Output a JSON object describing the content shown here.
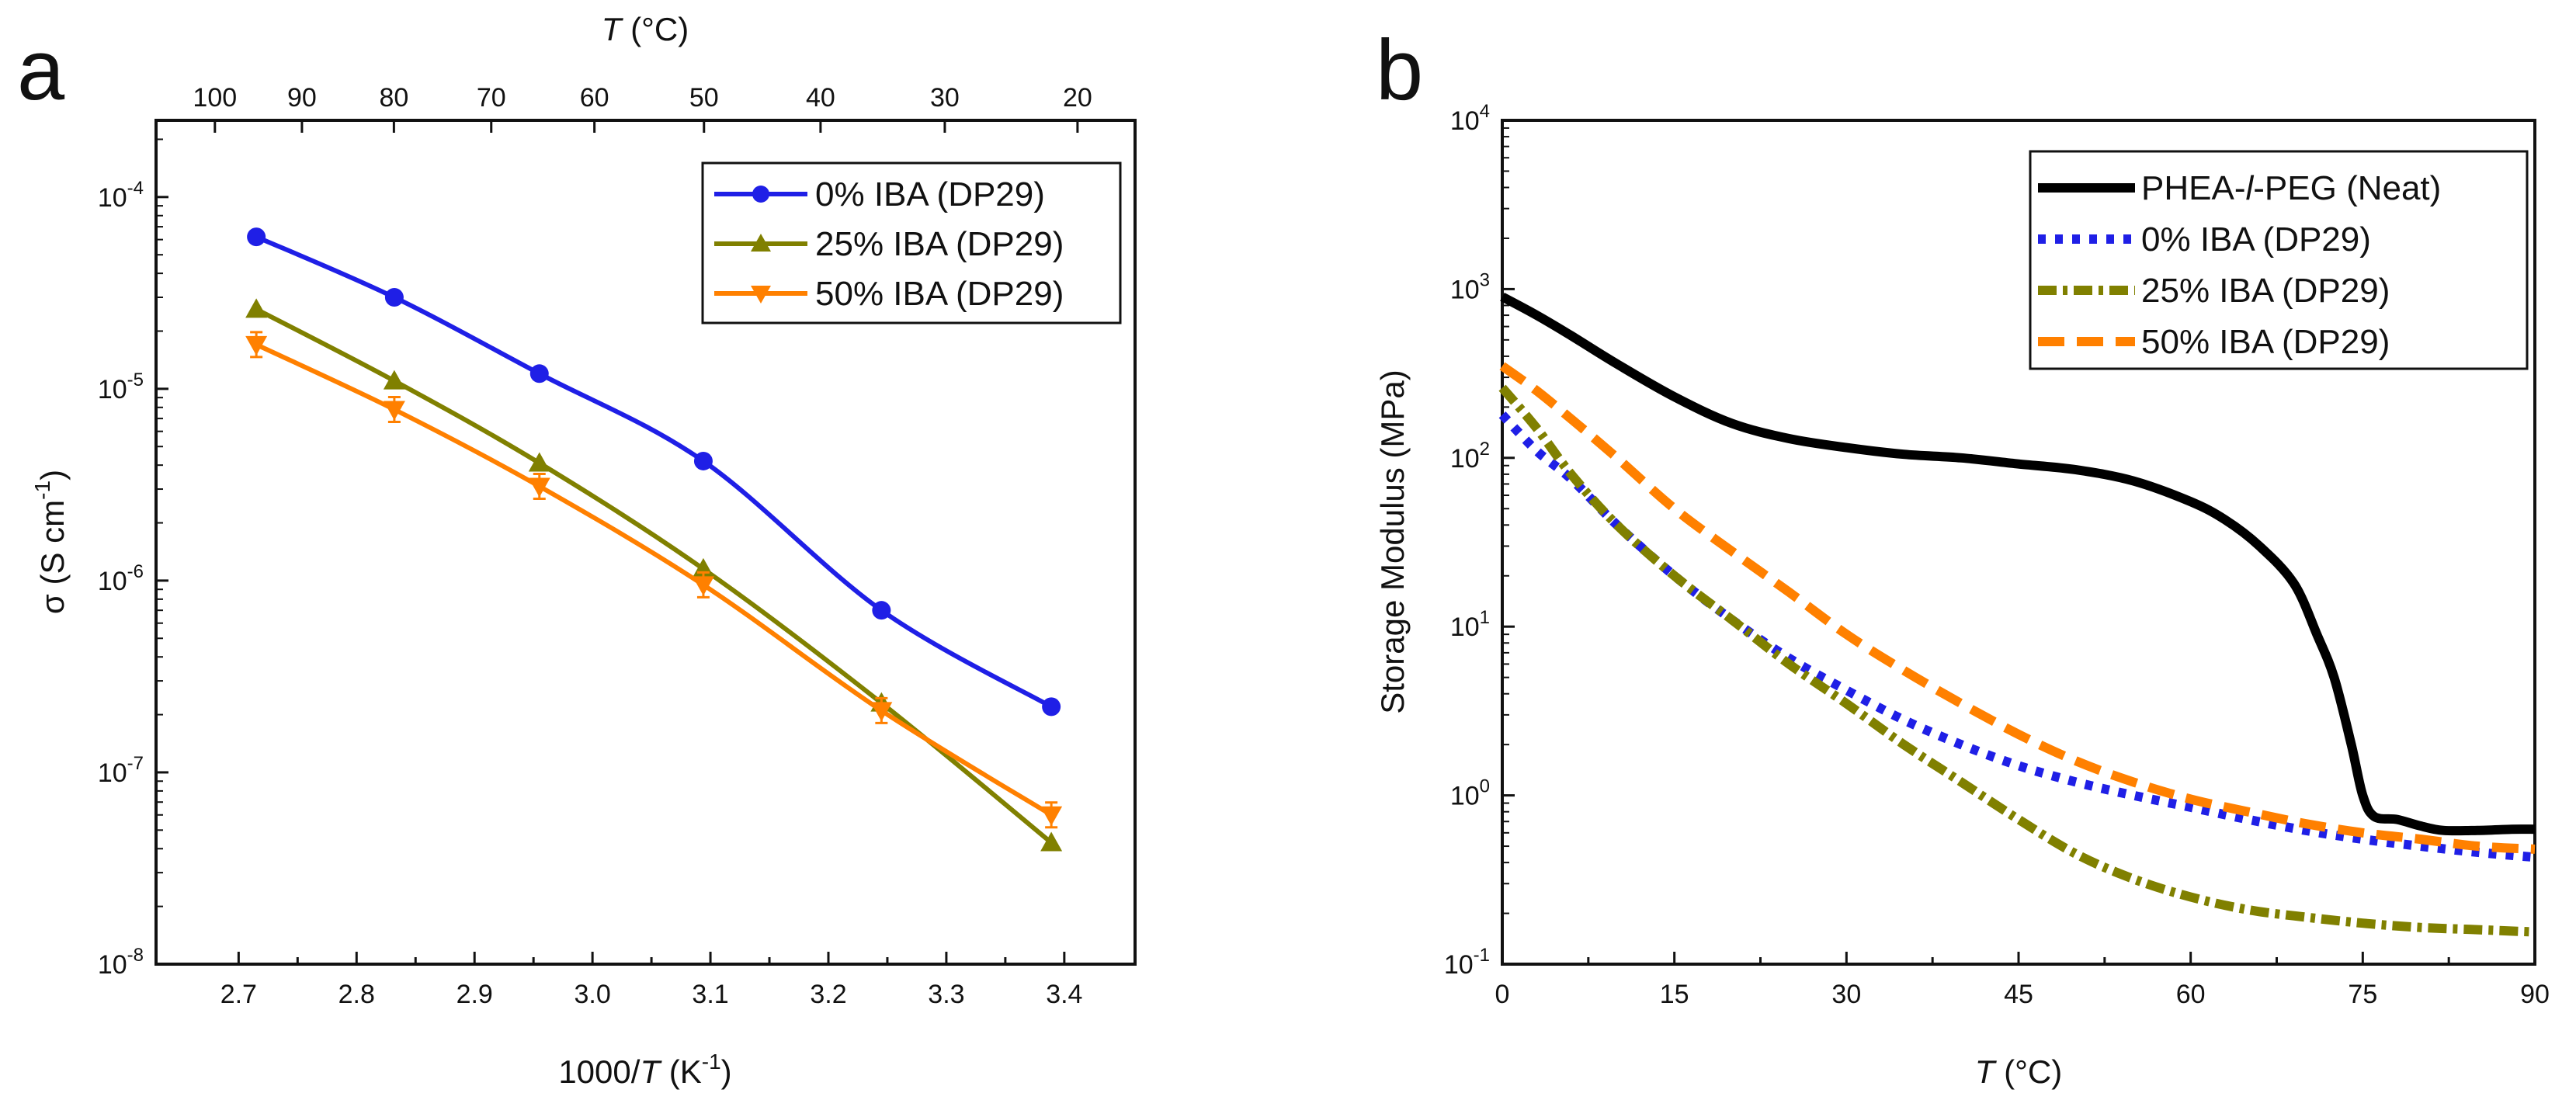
{
  "chart_data": [
    {
      "panel": "a",
      "type": "line",
      "title": "",
      "xlabel_prefix": "1000/",
      "xlabel_var": "T",
      "xlabel_unit": " (K",
      "xlabel_exp": "-1",
      "xlabel_suffix": ")",
      "ylabel_prefix": "σ (S cm",
      "ylabel_exp": "-1",
      "ylabel_suffix": ")",
      "top_xlabel_var": "T",
      "top_xlabel_suffix": " (°C)",
      "xlim": [
        2.63,
        3.46
      ],
      "ylim_log10": [
        -8,
        -3.6
      ],
      "yscale": "log",
      "xticks": [
        "2.7",
        "2.8",
        "2.9",
        "3.0",
        "3.1",
        "3.2",
        "3.3",
        "3.4"
      ],
      "xtick_values": [
        2.7,
        2.8,
        2.9,
        3.0,
        3.1,
        3.2,
        3.3,
        3.4
      ],
      "yticks_exp": [
        "-8",
        "-7",
        "-6",
        "-5",
        "-4"
      ],
      "top_xticks": [
        "100",
        "90",
        "80",
        "70",
        "60",
        "50",
        "40",
        "30",
        "20"
      ],
      "top_xtick_celsius": [
        100,
        90,
        80,
        70,
        60,
        50,
        40,
        30,
        20
      ],
      "series": [
        {
          "name": "0% IBA (DP29)",
          "color": "#1f1fe6",
          "marker": "circle",
          "x": [
            2.715,
            2.832,
            2.955,
            3.094,
            3.245,
            3.389
          ],
          "y": [
            6.2e-05,
            3e-05,
            1.2e-05,
            4.2e-06,
            7e-07,
            2.2e-07
          ]
        },
        {
          "name": "25% IBA (DP29)",
          "color": "#808000",
          "marker": "triangle-up",
          "x": [
            2.715,
            2.832,
            2.955,
            3.094,
            3.245,
            3.389
          ],
          "y": [
            2.6e-05,
            1.1e-05,
            4.1e-06,
            1.15e-06,
            2.3e-07,
            4.3e-08
          ]
        },
        {
          "name": "50% IBA (DP29)",
          "color": "#ff8000",
          "marker": "triangle-down",
          "x": [
            2.715,
            2.832,
            2.955,
            3.094,
            3.245,
            3.389
          ],
          "y": [
            1.7e-05,
            7.8e-06,
            3.1e-06,
            9.5e-07,
            2.1e-07,
            6e-08
          ]
        }
      ],
      "legend_position": "top-right"
    },
    {
      "panel": "b",
      "type": "line",
      "title": "",
      "xlabel_var": "T",
      "xlabel_suffix": " (°C)",
      "ylabel": "Storage Modulus (MPa)",
      "xlim": [
        0,
        90
      ],
      "ylim_log10": [
        -1,
        4
      ],
      "yscale": "log",
      "xticks": [
        "0",
        "15",
        "30",
        "45",
        "60",
        "75",
        "90"
      ],
      "xtick_values": [
        0,
        15,
        30,
        45,
        60,
        75,
        90
      ],
      "yticks_exp": [
        "-1",
        "0",
        "1",
        "2",
        "3",
        "4"
      ],
      "series": [
        {
          "name_pre": "PHEA-",
          "name_ital": "l",
          "name_post": "-PEG (Neat)",
          "color": "#000000",
          "style": "solid",
          "x": [
            0,
            3,
            6,
            10,
            15,
            20,
            25,
            30,
            35,
            40,
            45,
            50,
            55,
            60,
            63,
            66,
            69,
            71,
            72.5,
            74,
            75,
            76,
            78,
            80,
            82,
            85,
            88,
            90
          ],
          "y": [
            900,
            700,
            530,
            360,
            230,
            160,
            130,
            115,
            105,
            100,
            92,
            85,
            73,
            55,
            43,
            30,
            18,
            9,
            5,
            2,
            1,
            0.75,
            0.72,
            0.66,
            0.62,
            0.62,
            0.63,
            0.63
          ]
        },
        {
          "name": "0% IBA (DP29)",
          "color": "#1f1fe6",
          "style": "dotted",
          "x": [
            0,
            3,
            6,
            10,
            15,
            20,
            25,
            30,
            35,
            40,
            45,
            50,
            55,
            60,
            65,
            70,
            75,
            80,
            85,
            90
          ],
          "y": [
            180,
            110,
            75,
            40,
            20,
            11,
            6.5,
            4.2,
            2.8,
            2.0,
            1.5,
            1.2,
            1.0,
            0.85,
            0.72,
            0.62,
            0.55,
            0.5,
            0.46,
            0.43
          ]
        },
        {
          "name": "25% IBA (DP29)",
          "color": "#808000",
          "style": "dash-dot",
          "x": [
            0,
            3,
            6,
            10,
            15,
            20,
            25,
            30,
            35,
            40,
            45,
            50,
            55,
            60,
            65,
            70,
            75,
            80,
            85,
            90
          ],
          "y": [
            260,
            150,
            80,
            40,
            20,
            11,
            6,
            3.5,
            2.0,
            1.2,
            0.72,
            0.45,
            0.32,
            0.25,
            0.21,
            0.19,
            0.175,
            0.165,
            0.16,
            0.155
          ]
        },
        {
          "name": "50% IBA (DP29)",
          "color": "#ff8000",
          "style": "dashed",
          "x": [
            0,
            3,
            6,
            10,
            15,
            20,
            25,
            30,
            35,
            40,
            45,
            50,
            55,
            60,
            65,
            70,
            75,
            80,
            85,
            90
          ],
          "y": [
            350,
            250,
            170,
            100,
            50,
            28,
            16,
            9,
            5.5,
            3.5,
            2.3,
            1.6,
            1.2,
            0.95,
            0.8,
            0.68,
            0.6,
            0.55,
            0.5,
            0.48
          ]
        }
      ],
      "legend_position": "top-right"
    }
  ]
}
